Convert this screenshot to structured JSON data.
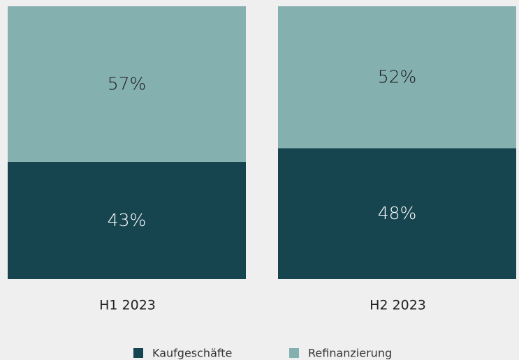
{
  "chart_data": {
    "type": "stacked_bar",
    "categories": [
      "H1 2023",
      "H2 2023"
    ],
    "ylim": [
      0,
      100
    ],
    "series": [
      {
        "name": "Kaufgeschäfte",
        "color": "#17454f",
        "values": [
          43,
          48
        ],
        "value_labels": [
          "43%",
          "48%"
        ]
      },
      {
        "name": "Refinanzierung",
        "color": "#85b0b0",
        "values": [
          57,
          52
        ],
        "value_labels": [
          "57%",
          "52%"
        ]
      }
    ]
  }
}
